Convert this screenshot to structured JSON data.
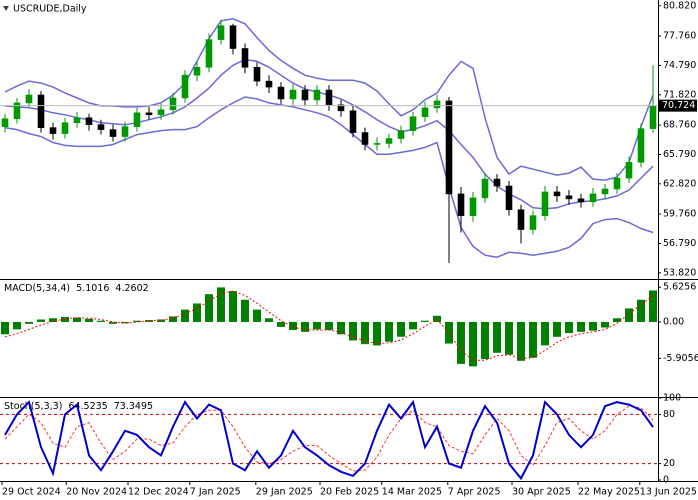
{
  "chart_data": [
    {
      "type": "candlestick",
      "title": "USCRUDE,Daily",
      "open": [
        68.6,
        69.4,
        71.0,
        71.8,
        68.5,
        67.9,
        69.0,
        69.5,
        68.8,
        68.3,
        67.6,
        68.6,
        70.0,
        69.8,
        70.3,
        71.5,
        73.8,
        74.6,
        77.4,
        78.8,
        76.5,
        74.6,
        73.2,
        72.6,
        71.4,
        72.3,
        71.3,
        72.3,
        70.8,
        70.2,
        68.0,
        66.8,
        66.9,
        67.4,
        68.2,
        69.6,
        70.5,
        71.2,
        61.8,
        59.6,
        61.4,
        63.3,
        62.6,
        60.2,
        58.2,
        59.6,
        62.0,
        61.6,
        61.3,
        61.0,
        61.8,
        62.3,
        63.4,
        65.0,
        68.4
      ],
      "high": [
        69.9,
        71.5,
        72.4,
        72.2,
        69.0,
        69.5,
        70.1,
        69.9,
        69.3,
        68.8,
        69.1,
        70.5,
        70.6,
        70.9,
        72.0,
        74.3,
        75.2,
        78.0,
        79.4,
        79.0,
        77.0,
        75.1,
        73.8,
        73.1,
        72.9,
        72.8,
        72.8,
        72.8,
        71.3,
        70.7,
        68.5,
        67.5,
        67.9,
        68.7,
        70.1,
        71.1,
        71.8,
        71.6,
        62.5,
        62.0,
        63.9,
        63.8,
        63.1,
        60.7,
        60.1,
        62.6,
        62.6,
        62.2,
        61.8,
        62.4,
        62.8,
        63.9,
        65.6,
        68.9,
        74.8
      ],
      "low": [
        68.0,
        68.9,
        70.5,
        68.0,
        67.3,
        67.4,
        68.5,
        68.2,
        67.8,
        67.1,
        67.1,
        68.1,
        69.3,
        69.3,
        69.8,
        71.0,
        73.2,
        74.1,
        76.9,
        75.9,
        74.0,
        72.7,
        72.0,
        70.9,
        70.8,
        70.7,
        70.8,
        70.2,
        69.6,
        67.5,
        66.2,
        66.2,
        66.4,
        66.9,
        67.7,
        69.1,
        70.0,
        54.8,
        57.9,
        59.0,
        60.9,
        62.0,
        59.6,
        56.8,
        57.7,
        59.1,
        61.0,
        60.7,
        60.4,
        60.5,
        61.3,
        61.8,
        62.9,
        64.5,
        68.0
      ],
      "close": [
        69.4,
        71.0,
        71.8,
        68.5,
        67.9,
        69.0,
        69.5,
        68.8,
        68.3,
        67.6,
        68.6,
        70.0,
        69.8,
        70.3,
        71.5,
        73.8,
        74.6,
        77.4,
        78.8,
        76.5,
        74.6,
        73.2,
        72.6,
        71.4,
        72.3,
        71.3,
        72.3,
        70.8,
        70.2,
        68.0,
        66.8,
        66.9,
        67.4,
        68.2,
        69.6,
        70.5,
        71.2,
        61.8,
        59.6,
        61.4,
        63.3,
        62.6,
        60.2,
        58.2,
        59.6,
        62.0,
        61.6,
        61.3,
        61.0,
        61.8,
        62.3,
        63.4,
        65.0,
        68.4,
        70.724
      ],
      "up_color": "#009900",
      "down_color": "#000000",
      "bands": {
        "color": "#6a6ad8",
        "upper": [
          72.1,
          72.7,
          73.2,
          73.0,
          72.6,
          72.0,
          71.5,
          71.0,
          70.7,
          70.7,
          70.6,
          70.6,
          70.7,
          71.0,
          71.8,
          73.0,
          75.2,
          77.5,
          79.3,
          79.5,
          79.0,
          77.6,
          76.3,
          75.3,
          74.5,
          73.8,
          73.5,
          73.3,
          73.3,
          73.3,
          73.0,
          72.2,
          70.9,
          69.7,
          70.3,
          71.3,
          72.0,
          73.8,
          75.2,
          74.5,
          69.5,
          65.5,
          63.8,
          64.6,
          64.3,
          64.0,
          63.7,
          63.9,
          64.5,
          63.3,
          63.2,
          63.5,
          65.0,
          68.6,
          71.8
        ],
        "middle": [
          70.7,
          70.6,
          70.5,
          70.3,
          70.0,
          69.8,
          69.5,
          69.3,
          69.0,
          68.9,
          68.8,
          69.0,
          69.3,
          69.6,
          70.0,
          70.6,
          71.5,
          72.5,
          73.8,
          74.8,
          75.4,
          75.2,
          74.6,
          73.8,
          73.0,
          72.4,
          72.1,
          71.8,
          71.4,
          70.8,
          70.1,
          69.3,
          68.6,
          68.1,
          68.3,
          68.7,
          69.2,
          68.2,
          66.8,
          65.5,
          63.8,
          62.6,
          61.8,
          61.2,
          60.4,
          60.3,
          60.4,
          60.8,
          61.0,
          61.1,
          61.3,
          61.6,
          62.2,
          63.4,
          64.6
        ],
        "lower": [
          68.5,
          68.3,
          67.9,
          67.6,
          67.0,
          66.7,
          66.6,
          66.6,
          66.6,
          66.8,
          67.3,
          67.8,
          68.0,
          68.2,
          68.3,
          68.3,
          68.6,
          69.5,
          70.3,
          71.0,
          71.6,
          71.4,
          71.0,
          70.8,
          70.6,
          70.3,
          70.0,
          69.6,
          68.8,
          67.8,
          66.8,
          65.8,
          65.8,
          66.0,
          66.2,
          66.5,
          67.0,
          62.5,
          58.4,
          56.5,
          55.6,
          55.4,
          55.9,
          55.8,
          55.6,
          55.8,
          56.0,
          56.4,
          57.3,
          58.8,
          59.2,
          59.3,
          58.9,
          58.3,
          57.9
        ]
      },
      "ylim": [
        53.3,
        81.2
      ],
      "yticks": [
        {
          "value": 80.82,
          "label": "80.820"
        },
        {
          "value": 77.76,
          "label": "77.760"
        },
        {
          "value": 74.79,
          "label": "74.790"
        },
        {
          "value": 71.82,
          "label": "71.820"
        },
        {
          "value": 68.76,
          "label": "68.760"
        },
        {
          "value": 65.79,
          "label": "65.790"
        },
        {
          "value": 62.82,
          "label": "62.820"
        },
        {
          "value": 59.76,
          "label": "59.760"
        },
        {
          "value": 56.79,
          "label": "56.790"
        },
        {
          "value": 53.82,
          "label": "53.820"
        }
      ]
    },
    {
      "type": "macd",
      "title": "MACD(5,34,4)",
      "series": [
        {
          "color": "#008000",
          "values": [
            -2.0,
            -1.2,
            -0.3,
            0.4,
            0.6,
            0.8,
            0.7,
            0.5,
            0.2,
            -0.3,
            -0.2,
            0.2,
            0.3,
            0.4,
            0.9,
            2.0,
            3.0,
            4.5,
            5.6,
            5.0,
            3.6,
            2.0,
            0.6,
            -0.8,
            -1.3,
            -1.6,
            -1.2,
            -1.3,
            -2.0,
            -3.0,
            -3.6,
            -3.8,
            -3.2,
            -2.4,
            -1.2,
            0.2,
            1.0,
            -3.5,
            -6.8,
            -7.2,
            -6.0,
            -5.0,
            -5.3,
            -6.3,
            -5.8,
            -3.8,
            -2.4,
            -1.8,
            -1.6,
            -1.4,
            -0.9,
            0.6,
            2.2,
            3.6,
            5.1016
          ]
        },
        {
          "color": "#ff0000",
          "values": [
            -2.4,
            -1.9,
            -1.2,
            -0.5,
            0.1,
            0.5,
            0.7,
            0.6,
            0.4,
            0.0,
            -0.2,
            0.0,
            0.2,
            0.3,
            0.6,
            1.3,
            2.2,
            3.4,
            4.6,
            5.0,
            4.3,
            3.0,
            1.6,
            0.2,
            -0.8,
            -1.3,
            -1.3,
            -1.3,
            -1.7,
            -2.4,
            -3.1,
            -3.5,
            -3.4,
            -2.9,
            -1.9,
            -0.7,
            0.4,
            -1.8,
            -4.6,
            -6.2,
            -6.2,
            -5.5,
            -5.3,
            -5.9,
            -5.8,
            -4.6,
            -3.3,
            -2.4,
            -1.9,
            -1.6,
            -1.2,
            -0.2,
            1.3,
            2.8,
            4.2602
          ]
        }
      ],
      "ylim": [
        -12.0,
        6.8
      ],
      "yticks": [
        5.6256,
        {
          "value": 0,
          "label": "0.00"
        },
        -5.9056
      ]
    },
    {
      "type": "stochastic",
      "title": "Stoch(5,3,3)",
      "series": [
        {
          "color": "#0000cc",
          "values": [
            55,
            80,
            95,
            40,
            8,
            80,
            92,
            30,
            12,
            35,
            60,
            55,
            40,
            30,
            65,
            95,
            75,
            92,
            85,
            20,
            12,
            35,
            15,
            30,
            60,
            40,
            30,
            18,
            10,
            5,
            20,
            60,
            92,
            75,
            95,
            40,
            65,
            20,
            15,
            60,
            90,
            70,
            20,
            2,
            30,
            95,
            80,
            55,
            40,
            55,
            90,
            95,
            92,
            85,
            64.5235
          ]
        },
        {
          "color": "#ff3333",
          "values": [
            50,
            65,
            80,
            70,
            45,
            40,
            65,
            70,
            45,
            25,
            35,
            50,
            50,
            42,
            45,
            65,
            80,
            85,
            85,
            65,
            40,
            22,
            20,
            25,
            35,
            42,
            42,
            30,
            20,
            11,
            12,
            28,
            55,
            75,
            85,
            70,
            65,
            42,
            35,
            32,
            55,
            75,
            60,
            30,
            18,
            42,
            70,
            75,
            60,
            50,
            60,
            80,
            90,
            88,
            73.3495
          ]
        }
      ],
      "ylim": [
        0,
        100
      ],
      "yticks": [
        100,
        80,
        20,
        0
      ],
      "levels": [
        80,
        20
      ],
      "level_color": "#cc0000",
      "xticks": [
        {
          "value": -0.25,
          "label": "29 Oct 2024"
        },
        {
          "value": 5.1,
          "label": "20 Nov 2024"
        },
        {
          "value": 10.25,
          "label": "12 Dec 2024"
        },
        {
          "value": 15.4,
          "label": "7 Jan 2025"
        },
        {
          "value": 20.9,
          "label": "29 Jan 2025"
        },
        {
          "value": 26.25,
          "label": "20 Feb 2025"
        },
        {
          "value": 31.4,
          "label": "14 Mar 2025"
        },
        {
          "value": 36.9,
          "label": "7 Apr 2025"
        },
        {
          "value": 42.25,
          "label": "30 Apr 2025"
        },
        {
          "value": 47.75,
          "label": "22 May 2025"
        },
        {
          "value": 52.9,
          "label": "13 Jun 2025"
        }
      ]
    }
  ]
}
